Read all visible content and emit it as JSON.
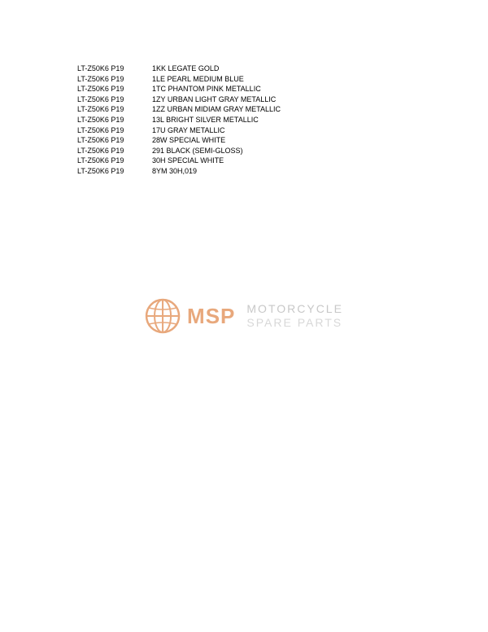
{
  "colorTable": {
    "rows": [
      {
        "model": "LT-Z50K6 P19",
        "color": "1KK LEGATE GOLD"
      },
      {
        "model": "LT-Z50K6 P19",
        "color": "1LE PEARL MEDIUM BLUE"
      },
      {
        "model": "LT-Z50K6 P19",
        "color": "1TC PHANTOM PINK METALLIC"
      },
      {
        "model": "LT-Z50K6 P19",
        "color": "1ZY URBAN LIGHT GRAY METALLIC"
      },
      {
        "model": "LT-Z50K6 P19",
        "color": "1ZZ URBAN MIDIAM GRAY METALLIC"
      },
      {
        "model": "LT-Z50K6 P19",
        "color": "13L BRIGHT SILVER METALLIC"
      },
      {
        "model": "LT-Z50K6 P19",
        "color": "17U GRAY METALLIC"
      },
      {
        "model": "LT-Z50K6 P19",
        "color": "28W SPECIAL WHITE"
      },
      {
        "model": "LT-Z50K6 P19",
        "color": "291 BLACK (SEMI-GLOSS)"
      },
      {
        "model": "LT-Z50K6 P19",
        "color": "30H SPECIAL WHITE"
      },
      {
        "model": "LT-Z50K6 P19",
        "color": "8YM 30H,019"
      }
    ]
  },
  "watermark": {
    "brand": "MSP",
    "tagline1": "MOTORCYCLE",
    "tagline2": "SPARE PARTS",
    "globeColor": "#e8a87c",
    "brandColor": "#e8a87c",
    "tagline1Color": "#c8c8c8",
    "tagline2Color": "#d8d8d8"
  },
  "styling": {
    "backgroundColor": "#ffffff",
    "textColor": "#000000",
    "fontSize": 9,
    "fontFamily": "Arial"
  }
}
